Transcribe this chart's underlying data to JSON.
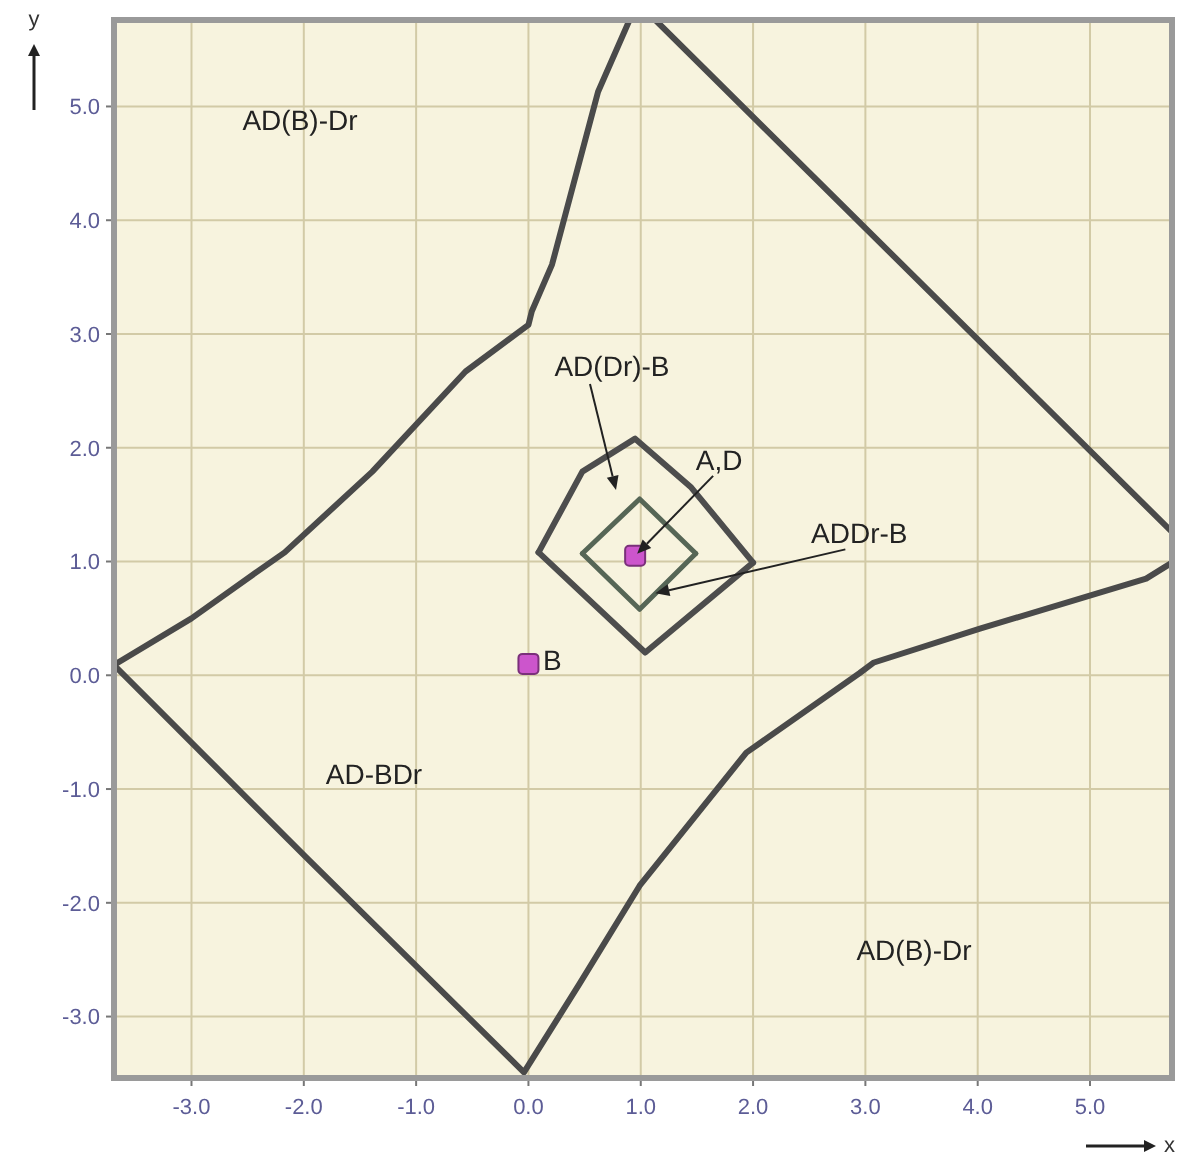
{
  "chart_data": {
    "type": "line",
    "xlabel": "x",
    "ylabel": "y",
    "xlim": [
      -3.69,
      5.73
    ],
    "ylim": [
      -3.54,
      5.76
    ],
    "xticks": [
      {
        "value": -3,
        "label": "-3.0"
      },
      {
        "value": -2,
        "label": "-2.0"
      },
      {
        "value": -1,
        "label": "-1.0"
      },
      {
        "value": 0,
        "label": "0.0"
      },
      {
        "value": 1,
        "label": "1.0"
      },
      {
        "value": 2,
        "label": "2.0"
      },
      {
        "value": 3,
        "label": "3.0"
      },
      {
        "value": 4,
        "label": "4.0"
      },
      {
        "value": 5,
        "label": "5.0"
      }
    ],
    "yticks": [
      {
        "value": -3,
        "label": "-3.0"
      },
      {
        "value": -2,
        "label": "-2.0"
      },
      {
        "value": -1,
        "label": "-1.0"
      },
      {
        "value": 0,
        "label": "0.0"
      },
      {
        "value": 1,
        "label": "1.0"
      },
      {
        "value": 2,
        "label": "2.0"
      },
      {
        "value": 3,
        "label": "3.0"
      },
      {
        "value": 4,
        "label": "4.0"
      },
      {
        "value": 5,
        "label": "5.0"
      }
    ],
    "grid": true,
    "annotations": [
      "AD(B)-Dr",
      "AD(Dr)-B",
      {
        "text": "A,D",
        "x": 0.95,
        "y": 1.05
      },
      {
        "text": "ADDr-B",
        "x": 1.13,
        "y": 0.72
      },
      {
        "text": "B",
        "x": 0.0,
        "y": 0.1
      },
      "AD-BDr",
      "AD(B)-Dr"
    ],
    "series": [
      {
        "color": "#4a4a4a",
        "x": [
          0.9,
          0.62,
          0.21,
          0.03,
          0.0,
          -0.56,
          -1.39,
          -2.17,
          -2.46,
          -3.0,
          -3.69,
          -1.99,
          -0.04,
          0.45,
          0.99,
          1.94,
          2.95,
          3.07,
          4.02,
          5.5,
          5.73
        ],
        "values": [
          5.76,
          5.13,
          3.61,
          3.2,
          3.08,
          2.67,
          1.79,
          1.08,
          0.88,
          0.5,
          0.09,
          -1.59,
          -3.49,
          -2.72,
          -1.85,
          -0.68,
          0.02,
          0.11,
          0.41,
          0.85,
          0.99
        ]
      },
      {
        "color": "#4a4a4a",
        "x": [
          1.13,
          5.73
        ],
        "values": [
          5.76,
          1.26
        ]
      },
      {
        "color": "#4d4d4d",
        "x": [
          0.09,
          0.48,
          0.95,
          1.45,
          2.0
        ],
        "values": [
          1.08,
          1.79,
          2.08,
          1.65,
          0.99
        ]
      },
      {
        "color": "#4d4d4d",
        "x": [
          0.09,
          1.04,
          2.0
        ],
        "values": [
          1.08,
          0.2,
          0.99
        ]
      },
      {
        "color": "#566656",
        "x": [
          0.48,
          0.99,
          1.49
        ],
        "values": [
          1.07,
          1.55,
          1.07
        ]
      },
      {
        "color": "#566656",
        "x": [
          0.48,
          0.99,
          1.49
        ],
        "values": [
          1.07,
          0.58,
          1.07
        ]
      },
      {
        "type": "scatter",
        "marker": "square",
        "color": "#cc55cc",
        "x": [
          0.95,
          0.0
        ],
        "values": [
          1.05,
          0.1
        ]
      }
    ]
  }
}
